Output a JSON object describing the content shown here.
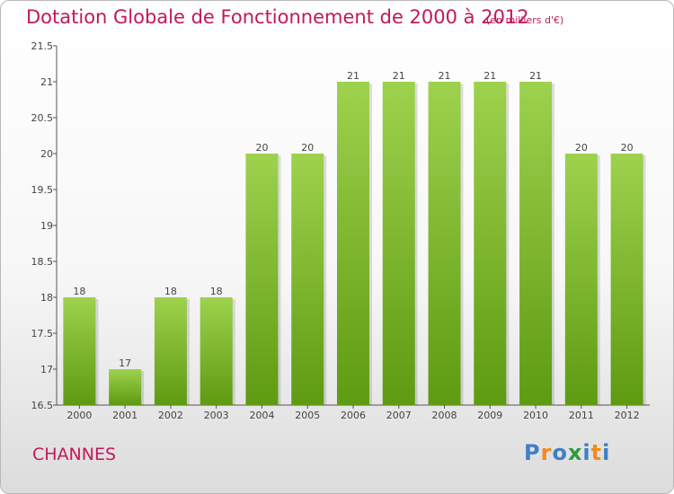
{
  "title": "Dotation Globale de Fonctionnement de 2000 à 2012",
  "subtitle": "(en milliers d'€)",
  "commune": "CHANNES",
  "logo": {
    "text": "Proxiti",
    "letters": [
      {
        "ch": "P",
        "color": "#3f7fc4"
      },
      {
        "ch": "r",
        "color": "#f28b1d"
      },
      {
        "ch": "o",
        "color": "#3f7fc4"
      },
      {
        "ch": "x",
        "color": "#2e9a3b"
      },
      {
        "ch": "i",
        "color": "#3f7fc4"
      },
      {
        "ch": "t",
        "color": "#f28b1d"
      },
      {
        "ch": "i",
        "color": "#3f7fc4"
      }
    ]
  },
  "colors": {
    "title": "#c2185b",
    "bar_top": "#9ed24e",
    "bar_bottom": "#5e9a12",
    "axis": "#555555",
    "grid": "#cccccc"
  },
  "chart_data": {
    "type": "bar",
    "categories": [
      "2000",
      "2001",
      "2002",
      "2003",
      "2004",
      "2005",
      "2006",
      "2007",
      "2008",
      "2009",
      "2010",
      "2011",
      "2012"
    ],
    "values": [
      18,
      17,
      18,
      18,
      20,
      20,
      21,
      21,
      21,
      21,
      21,
      20,
      20
    ],
    "data_labels": [
      "18",
      "17",
      "18",
      "18",
      "20",
      "20",
      "21",
      "21",
      "21",
      "21",
      "21",
      "20",
      "20"
    ],
    "ylim": [
      16.5,
      21.5
    ],
    "yticks": [
      16.5,
      17,
      17.5,
      18,
      18.5,
      19,
      19.5,
      20,
      20.5,
      21,
      21.5
    ],
    "ytick_labels": [
      "16.5",
      "17",
      "17.5",
      "18",
      "18.5",
      "19",
      "19.5",
      "20",
      "20.5",
      "21",
      "21.5"
    ],
    "grid": false
  }
}
